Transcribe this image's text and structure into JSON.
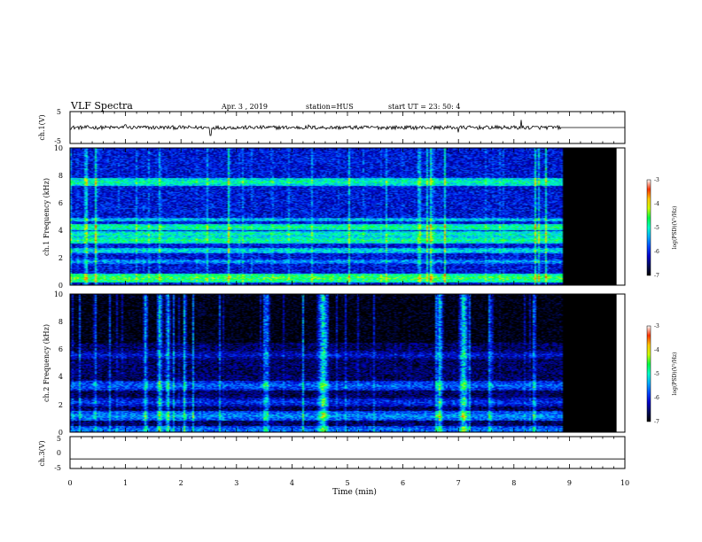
{
  "header": {
    "title": "VLF Spectra",
    "date": "Apr. 3 , 2019",
    "station": "station=HUS",
    "start": "start UT = 23: 50: 4"
  },
  "colors": {
    "colormap": [
      "#000000",
      "#000a5a",
      "#0000c8",
      "#0046ff",
      "#00aaff",
      "#00ffcc",
      "#00ff44",
      "#ccff00",
      "#ffc800",
      "#ff3200",
      "#ffffff"
    ],
    "no_data": "#000000",
    "waveform": "#000000"
  },
  "chart_data": [
    {
      "type": "line",
      "name": "ch1-waveform",
      "ylabel": "ch.1(V)",
      "ylim": [
        -5,
        5
      ],
      "yticks": [
        "5",
        "-5"
      ],
      "xlim": [
        0,
        10
      ],
      "baseline": 0,
      "noise_amplitude": 0.6,
      "flat_after": 8.85,
      "spikes": [
        {
          "x": 2.53,
          "y": -2.5
        },
        {
          "x": 7.0,
          "y": -1.5
        },
        {
          "x": 8.13,
          "y": 2.4
        },
        {
          "x": 1.0,
          "y": 0.9
        },
        {
          "x": 4.3,
          "y": 0.8
        }
      ]
    },
    {
      "type": "heatmap",
      "name": "ch1-spectrogram",
      "ylabel": "ch.1 Frequency (kHz)",
      "xlim": [
        0,
        10
      ],
      "ylim": [
        0,
        10
      ],
      "yticks": [
        "0",
        "2",
        "4",
        "6",
        "8",
        "10"
      ],
      "data_end_min": 8.85,
      "no_data_end_min": 9.85,
      "background_log_psd": -6.1,
      "bands": [
        {
          "freq": 7.55,
          "width": 0.3,
          "log_psd": -4.9
        },
        {
          "freq": 4.8,
          "width": 0.12,
          "log_psd": -5.2
        },
        {
          "freq": 4.25,
          "width": 0.25,
          "log_psd": -4.8
        },
        {
          "freq": 3.75,
          "width": 0.2,
          "log_psd": -4.9
        },
        {
          "freq": 3.3,
          "width": 0.25,
          "log_psd": -4.8
        },
        {
          "freq": 2.55,
          "width": 0.2,
          "log_psd": -5.1
        },
        {
          "freq": 1.75,
          "width": 0.15,
          "log_psd": -5.4
        },
        {
          "freq": 0.55,
          "width": 0.35,
          "log_psd": -4.6
        }
      ],
      "colorbar": {
        "label": "log(PSD)(V²/Hz)",
        "range": [
          -7,
          -3
        ],
        "ticks": [
          "-3",
          "-4",
          "-5",
          "-6",
          "-7"
        ]
      }
    },
    {
      "type": "heatmap",
      "name": "ch2-spectrogram",
      "ylabel": "ch.2 Frequency (kHz)",
      "xlim": [
        0,
        10
      ],
      "ylim": [
        0,
        10
      ],
      "yticks": [
        "0",
        "2",
        "4",
        "6",
        "8",
        "10"
      ],
      "data_end_min": 8.85,
      "no_data_end_min": 9.85,
      "background_log_psd": -6.6,
      "bands": [
        {
          "freq": 3.4,
          "width": 0.35,
          "log_psd": -5.7
        },
        {
          "freq": 2.2,
          "width": 0.3,
          "log_psd": -5.9
        },
        {
          "freq": 1.2,
          "width": 0.35,
          "log_psd": -5.5
        },
        {
          "freq": 5.6,
          "width": 0.3,
          "log_psd": -6.1
        },
        {
          "freq": 0.2,
          "width": 0.3,
          "log_psd": -5.6
        }
      ],
      "bursts": [
        {
          "t": 1.35,
          "width": 0.04,
          "log_psd": -5.0
        },
        {
          "t": 1.6,
          "width": 0.06,
          "log_psd": -4.9
        },
        {
          "t": 1.75,
          "width": 0.05,
          "log_psd": -5.0
        },
        {
          "t": 2.05,
          "width": 0.04,
          "log_psd": -5.1
        },
        {
          "t": 3.5,
          "width": 0.05,
          "log_psd": -5.2
        },
        {
          "t": 4.55,
          "width": 0.12,
          "log_psd": -4.7
        },
        {
          "t": 6.65,
          "width": 0.07,
          "log_psd": -4.9
        },
        {
          "t": 7.08,
          "width": 0.1,
          "log_psd": -4.7
        },
        {
          "t": 7.55,
          "width": 0.04,
          "log_psd": -5.2
        },
        {
          "t": 8.35,
          "width": 0.04,
          "log_psd": -5.2
        }
      ],
      "colorbar": {
        "label": "log(PSD)(V²/Hz)",
        "range": [
          -7,
          -3
        ],
        "ticks": [
          "-3",
          "-4",
          "-5",
          "-6",
          "-7"
        ]
      }
    },
    {
      "type": "line",
      "name": "ch3-waveform",
      "ylabel": "ch.3(V)",
      "ylim": [
        -5,
        5
      ],
      "yticks": [
        "5",
        "0",
        "-5"
      ],
      "xlim": [
        0,
        10
      ],
      "baseline": -2,
      "noise_amplitude": 0,
      "xlabel": "Time (min)",
      "xticks": [
        "0",
        "1",
        "2",
        "3",
        "4",
        "5",
        "6",
        "7",
        "8",
        "9",
        "10"
      ]
    }
  ]
}
